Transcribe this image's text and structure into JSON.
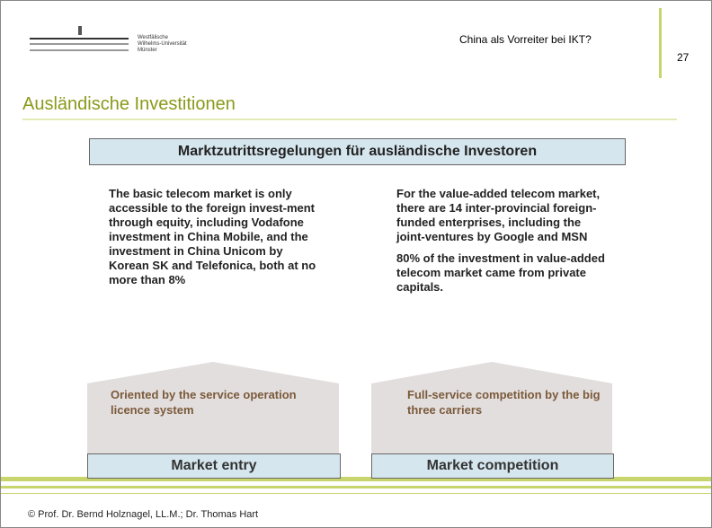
{
  "header": {
    "university": [
      "Westfälische",
      "Wilhelms-Universität",
      "Münster"
    ],
    "topic": "China als Vorreiter bei IKT?",
    "page": "27"
  },
  "title": "Ausländische Investitionen",
  "banner": "Marktzutrittsregelungen für ausländische Investoren",
  "left": {
    "text": [
      "The basic telecom market is only accessible to the foreign invest-ment through equity, including Vodafone investment in China Mobile, and the investment in China Unicom by Korean SK and Telefonica, both at no more than 8%"
    ],
    "box": "Oriented by the service operation licence system",
    "label": "Market entry"
  },
  "right": {
    "text": [
      "For the value-added telecom market, there are 14 inter-provincial foreign-funded enterprises, including the joint-ventures by Google and MSN",
      "80% of the investment in value-added telecom market came from private capitals."
    ],
    "box": "Full-service competition by the big three carriers",
    "label": "Market competition"
  },
  "footer": "© Prof. Dr. Bernd Holznagel, LL.M.; Dr. Thomas Hart"
}
